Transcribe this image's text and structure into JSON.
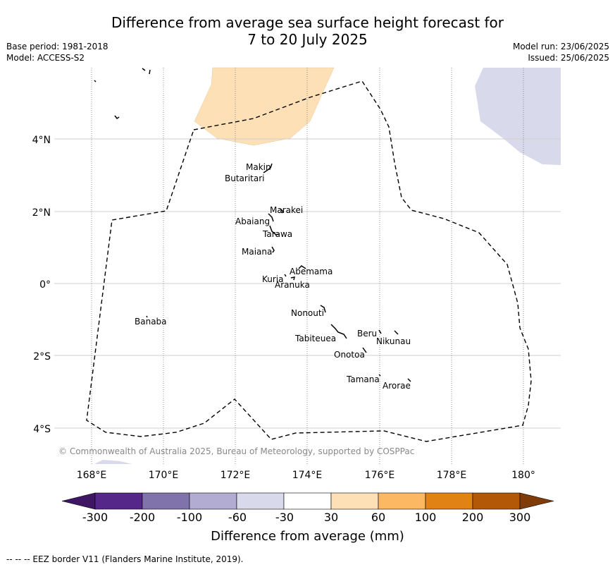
{
  "title_line1": "Difference from average sea surface height forecast for",
  "title_line2": "7 to 20 July 2025",
  "meta_left": [
    "Base period: 1981-2018",
    "Model: ACCESS-S2"
  ],
  "meta_right": [
    "Model run: 23/06/2025",
    "Issued: 25/06/2025"
  ],
  "map": {
    "lon_ticks": [
      "168°E",
      "170°E",
      "172°E",
      "174°E",
      "176°E",
      "178°E",
      "180°"
    ],
    "lat_ticks": [
      "4°N",
      "2°N",
      "0°",
      "2°S",
      "4°S"
    ],
    "place_names": [
      "Makin",
      "Butaritari",
      "Marakei",
      "Abaiang",
      "Tarawa",
      "Maiana",
      "Abemama",
      "Kuria",
      "Aranuka",
      "Nonouti",
      "Banaba",
      "Beru",
      "Nikunau",
      "Tabiteuea",
      "Onotoa",
      "Tamana",
      "Arorae"
    ],
    "copyright": "© Commonwealth of Australia 2025, Bureau of Meteorology, supported by COSPPac",
    "anomaly_colors": {
      "positive_30_60": "#fee0b6",
      "negative_30_60": "#d8daeb"
    }
  },
  "colorbar": {
    "labels": [
      "-300",
      "-200",
      "-100",
      "-60",
      "-30",
      "30",
      "60",
      "100",
      "200",
      "300"
    ],
    "colors": [
      "#3f1663",
      "#542788",
      "#8073ac",
      "#b2abd2",
      "#d8daeb",
      "#ffffff",
      "#fee0b6",
      "#fdb863",
      "#e08214",
      "#b35806",
      "#7f3b08"
    ],
    "title": "Difference from average (mm)"
  },
  "footnote": "--  --  -- EEZ border V11 (Flanders Marine Institute, 2019)."
}
